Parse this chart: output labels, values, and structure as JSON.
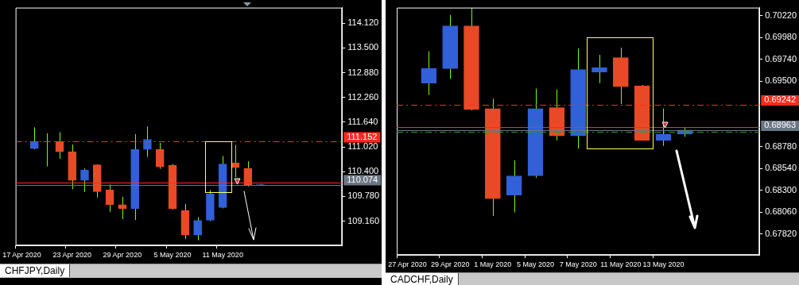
{
  "chart_data": [
    {
      "type": "candlestick",
      "title": "CHFJPY,Daily",
      "categories": [
        "17 Apr 2020",
        null,
        null,
        null,
        "23 Apr 2020",
        null,
        null,
        null,
        "29 Apr 2020",
        null,
        null,
        null,
        "5 May 2020",
        null,
        null,
        null,
        "11 May 2020",
        null,
        null,
        null,
        null,
        null,
        null,
        null,
        null,
        null
      ],
      "ohlc": [
        null,
        [
          110.98,
          111.51,
          110.96,
          111.16
        ],
        [
          111.15,
          111.36,
          110.53,
          111.16
        ],
        [
          111.16,
          111.39,
          110.72,
          110.9
        ],
        [
          110.9,
          111.08,
          109.96,
          110.18
        ],
        [
          110.18,
          110.48,
          109.89,
          110.44
        ],
        [
          110.57,
          110.58,
          109.75,
          109.9
        ],
        [
          109.94,
          110.08,
          109.39,
          109.57
        ],
        [
          109.57,
          109.77,
          109.21,
          109.47
        ],
        [
          109.47,
          111.34,
          109.19,
          110.96
        ],
        [
          110.96,
          111.53,
          110.77,
          111.21
        ],
        [
          110.96,
          111.12,
          110.47,
          110.52
        ],
        [
          110.56,
          110.59,
          109.45,
          109.47
        ],
        [
          109.43,
          109.59,
          108.71,
          108.81
        ],
        [
          108.81,
          109.26,
          108.68,
          109.18
        ],
        [
          109.18,
          109.94,
          109.16,
          109.84
        ],
        [
          109.5,
          110.79,
          109.48,
          110.59
        ],
        [
          110.62,
          111.07,
          110.26,
          110.5
        ],
        [
          110.48,
          110.66,
          110.03,
          110.07
        ],
        [
          110.07,
          110.09,
          110.05,
          110.074
        ],
        null,
        null,
        null,
        null,
        null,
        null
      ],
      "colors": [
        null,
        "#3260d8",
        "#3260d8",
        "#e84a27",
        "#e84a27",
        "#3260d8",
        "#e84a27",
        "#e84a27",
        "#e84a27",
        "#3260d8",
        "#3260d8",
        "#e84a27",
        "#e84a27",
        "#e84a27",
        "#3260d8",
        "#3260d8",
        "#3260d8",
        "#e84a27",
        "#e84a27",
        "#3260d8",
        null,
        null,
        null,
        null,
        null,
        null
      ],
      "ylim": [
        108.55,
        114.51
      ],
      "yticks": [
        {
          "value": 114.12,
          "label": "114.120"
        },
        {
          "value": 113.5,
          "label": "113.500"
        },
        {
          "value": 112.88,
          "label": "112.880"
        },
        {
          "value": 112.26,
          "label": "112.260"
        },
        {
          "value": 111.64,
          "label": "111.640"
        },
        {
          "value": 111.02,
          "label": "111.020"
        },
        {
          "value": 110.4,
          "label": "110.400"
        },
        {
          "value": 109.78,
          "label": "109.780"
        },
        {
          "value": 109.16,
          "label": "109.160"
        }
      ],
      "ref_lines": [
        {
          "axis": "y",
          "value": 111.152,
          "label": "111.152",
          "color": "#ff2a1a",
          "line_style": "dashed"
        },
        {
          "axis": "y",
          "value": 110.12,
          "color": "#ff2a1a",
          "line_style": "solid"
        },
        {
          "axis": "y",
          "value": 110.074,
          "label": "110.074",
          "color": "#6b7684",
          "line_style": "solid"
        }
      ]
    },
    {
      "type": "candlestick",
      "title": "CADCHF,Daily",
      "categories": [
        "27 Apr 2020",
        null,
        "29 Apr 2020",
        null,
        "1 May 2020",
        null,
        "5 May 2020",
        null,
        "7 May 2020",
        null,
        "11 May 2020",
        null,
        "13 May 2020",
        null,
        null,
        null,
        null
      ],
      "ohlc": [
        null,
        [
          0.6948,
          0.6983,
          0.6935,
          0.6964
        ],
        [
          0.6964,
          0.7023,
          0.6953,
          0.7011
        ],
        [
          0.7011,
          0.7031,
          0.6918,
          0.6919
        ],
        [
          0.692,
          0.6931,
          0.6802,
          0.6821
        ],
        [
          0.6825,
          0.6863,
          0.6806,
          0.6846
        ],
        [
          0.6846,
          0.6942,
          0.6844,
          0.692
        ],
        [
          0.6921,
          0.6941,
          0.6885,
          0.689
        ],
        [
          0.689,
          0.6986,
          0.6876,
          0.6963
        ],
        [
          0.696,
          0.6979,
          0.6948,
          0.6965
        ],
        [
          0.6976,
          0.6987,
          0.6925,
          0.6944
        ],
        [
          0.6945,
          0.6946,
          0.6885,
          0.6885
        ],
        [
          0.6885,
          0.692,
          0.6879,
          0.6892
        ],
        [
          0.6892,
          0.6899,
          0.6889,
          0.68963
        ],
        null,
        null,
        null
      ],
      "colors": [
        null,
        "#3260d8",
        "#3260d8",
        "#e84a27",
        "#e84a27",
        "#3260d8",
        "#3260d8",
        "#e84a27",
        "#3260d8",
        "#3260d8",
        "#e84a27",
        "#e84a27",
        "#3260d8",
        "#3260d8",
        null,
        null,
        null
      ],
      "ylim": [
        0.6759,
        0.7031
      ],
      "yticks": [
        {
          "value": 0.7022,
          "label": "0.70220"
        },
        {
          "value": 0.6998,
          "label": "0.69980"
        },
        {
          "value": 0.6974,
          "label": "0.69740"
        },
        {
          "value": 0.695,
          "label": "0.69500"
        },
        {
          "value": 0.6878,
          "label": "0.68780"
        },
        {
          "value": 0.6854,
          "label": "0.68540"
        },
        {
          "value": 0.683,
          "label": "0.68300"
        },
        {
          "value": 0.6806,
          "label": "0.68060"
        },
        {
          "value": 0.6782,
          "label": "0.67820"
        }
      ],
      "ref_lines": [
        {
          "axis": "y",
          "value": 0.69242,
          "label": "0.69242",
          "color": "#ff2a1a",
          "line_style": "dashed"
        },
        {
          "axis": "y",
          "value": 0.69,
          "color": "#ff2a1a",
          "line_style": "solid"
        },
        {
          "axis": "y",
          "value": 0.68963,
          "label": "0.68963",
          "color": "#6b7684",
          "line_style": "solid"
        },
        {
          "axis": "y",
          "value": 0.68946,
          "color": "#2e9a2e",
          "line_style": "dashed"
        }
      ]
    }
  ]
}
